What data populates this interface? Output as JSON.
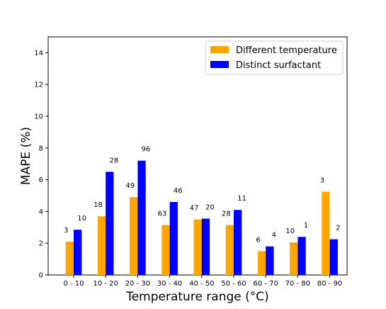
{
  "chart_data": {
    "type": "bar",
    "categories": [
      "0 - 10",
      "10 - 20",
      "20 - 30",
      "30 - 40",
      "40 - 50",
      "50 - 60",
      "60 - 70",
      "70 - 80",
      "80 - 90"
    ],
    "series": [
      {
        "name": "Different temperature",
        "color": "#FFA500",
        "values": [
          2.1,
          3.7,
          4.9,
          3.15,
          3.5,
          3.15,
          1.5,
          2.05,
          5.25
        ],
        "labels": [
          "3",
          "18",
          "49",
          "63",
          "47",
          "28",
          "6",
          "10",
          "3"
        ]
      },
      {
        "name": "Distinct surfactant",
        "color": "#0000FF",
        "values": [
          2.85,
          6.5,
          7.2,
          4.6,
          3.55,
          4.1,
          1.8,
          2.4,
          2.25
        ],
        "labels": [
          "10",
          "28",
          "96",
          "46",
          "20",
          "11",
          "4",
          "1",
          "2"
        ]
      }
    ],
    "xlabel": "Temperature range (°C)",
    "ylabel": "MAPE (%)",
    "ylim": [
      0,
      15
    ],
    "yticks": [
      0,
      2,
      4,
      6,
      8,
      10,
      12,
      14
    ],
    "grid": false,
    "legend_position": "top-right"
  }
}
